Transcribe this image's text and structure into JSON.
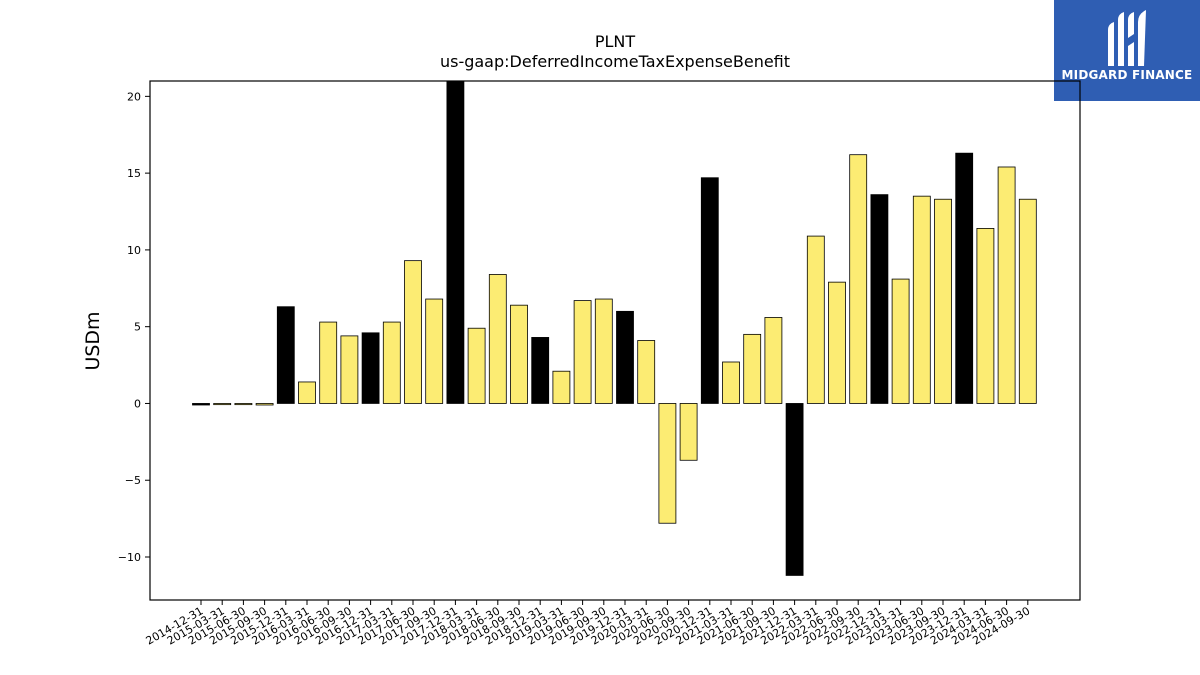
{
  "chart_data": {
    "type": "bar",
    "title": "PLNT",
    "subtitle": "us-gaap:DeferredIncomeTaxExpenseBenefit",
    "xlabel": "",
    "ylabel": "USDm",
    "ylim": [
      -12.8,
      21.0
    ],
    "yticks": [
      -10,
      -5,
      0,
      5,
      10,
      15,
      20
    ],
    "grid": false,
    "colors": {
      "highlight": "#000000",
      "normal": "#fcec73",
      "edge": "#000000"
    },
    "categories": [
      "2014-12-31",
      "2015-03-31",
      "2015-06-30",
      "2015-09-30",
      "2015-12-31",
      "2016-03-31",
      "2016-06-30",
      "2016-09-30",
      "2016-12-31",
      "2017-03-31",
      "2017-06-30",
      "2017-09-30",
      "2017-12-31",
      "2018-03-31",
      "2018-06-30",
      "2018-09-30",
      "2018-12-31",
      "2019-03-31",
      "2019-06-30",
      "2019-09-30",
      "2019-12-31",
      "2020-03-31",
      "2020-06-30",
      "2020-09-30",
      "2020-12-31",
      "2021-03-31",
      "2021-06-30",
      "2021-09-30",
      "2021-12-31",
      "2022-03-31",
      "2022-06-30",
      "2022-09-30",
      "2022-12-31",
      "2023-03-31",
      "2023-06-30",
      "2023-09-30",
      "2023-12-31",
      "2024-03-31",
      "2024-06-30",
      "2024-09-30"
    ],
    "values": [
      -0.1,
      0.0,
      0.0,
      -0.1,
      6.3,
      1.4,
      5.3,
      4.4,
      4.6,
      5.3,
      9.3,
      6.8,
      21.0,
      4.9,
      8.4,
      6.4,
      4.3,
      2.1,
      6.7,
      6.8,
      6.0,
      4.1,
      -7.8,
      -3.7,
      14.7,
      2.7,
      4.5,
      5.6,
      -11.2,
      10.9,
      7.9,
      16.2,
      13.6,
      8.1,
      13.5,
      13.3,
      16.3,
      11.4,
      15.4,
      13.3
    ],
    "highlight": [
      true,
      false,
      false,
      false,
      true,
      false,
      false,
      false,
      true,
      false,
      false,
      false,
      true,
      false,
      false,
      false,
      true,
      false,
      false,
      false,
      true,
      false,
      false,
      false,
      true,
      false,
      false,
      false,
      true,
      false,
      false,
      false,
      true,
      false,
      false,
      false,
      true,
      false,
      false,
      false
    ]
  },
  "logo": {
    "text": "MIDGARD FINANCE",
    "icon": "midgard-logo-icon"
  }
}
